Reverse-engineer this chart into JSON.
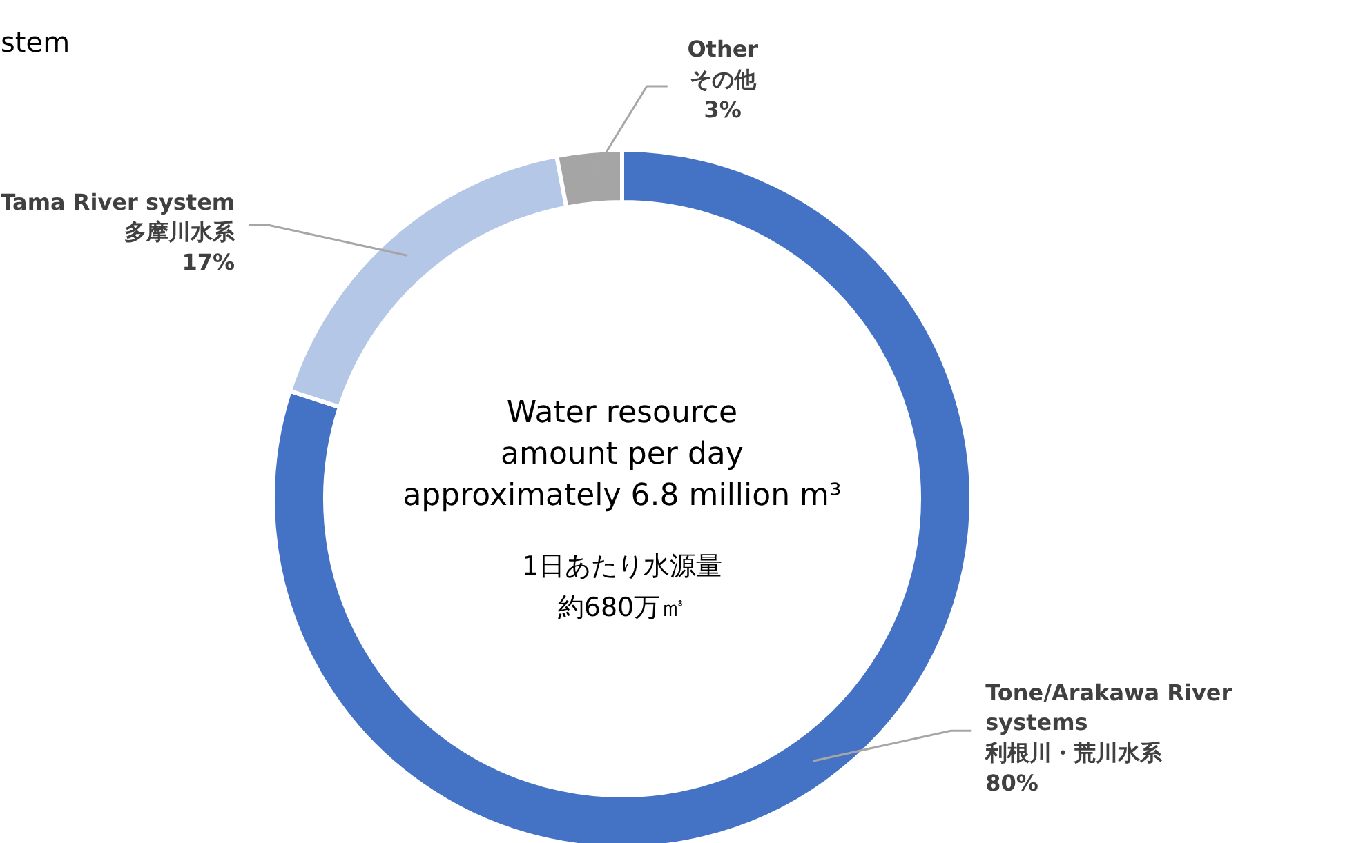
{
  "chart_data": {
    "type": "donut",
    "categories": [
      "Tone/Arakawa River\nsystems\n利根川・荒川水系",
      "Tama River system\n多摩川水系",
      "Other\nその他"
    ],
    "values": [
      80,
      17,
      3
    ],
    "colors": [
      "#4472c4",
      "#b4c7e7",
      "#a5a5a5"
    ],
    "value_labels": [
      "80%",
      "17%",
      "3%"
    ],
    "annotations": [
      "stem",
      "Water resource\namount per day\napproximately 6.8 million m³",
      "1日あたり水源量",
      "約680万㎥"
    ]
  }
}
